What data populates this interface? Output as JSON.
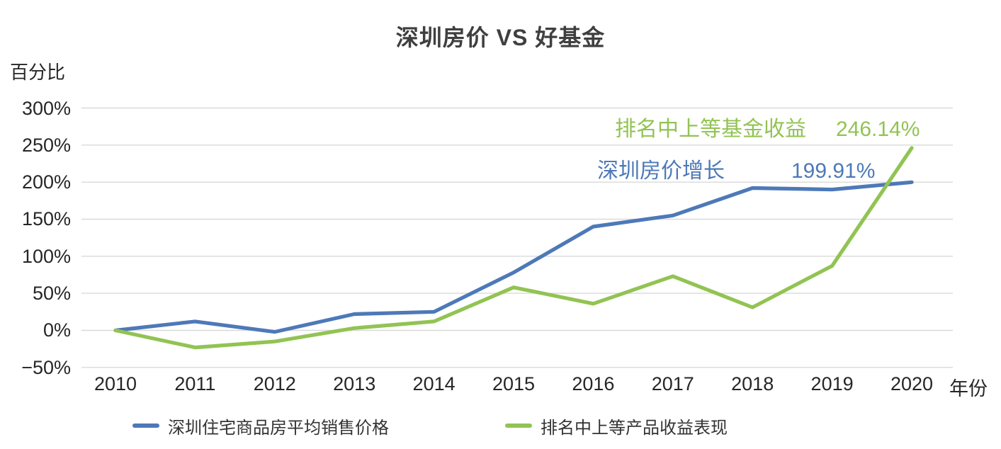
{
  "chart_data": {
    "type": "line",
    "title": "深圳房价 VS 好基金",
    "ylabel": "百分比",
    "xlabel": "年份",
    "ylim": [
      -50,
      300
    ],
    "ytick_step": 50,
    "yticks": [
      "300%",
      "250%",
      "200%",
      "150%",
      "100%",
      "50%",
      "0%",
      "−50%"
    ],
    "grid": true,
    "legend_position": "bottom",
    "categories": [
      "2010",
      "2011",
      "2012",
      "2013",
      "2014",
      "2015",
      "2016",
      "2017",
      "2018",
      "2019",
      "2020"
    ],
    "series": [
      {
        "name": "深圳住宅商品房平均销售价格",
        "color": "#4d79b8",
        "values": [
          0,
          12,
          -2,
          22,
          25,
          78,
          140,
          155,
          192,
          190,
          199.91
        ]
      },
      {
        "name": "排名中上等产品收益表现",
        "color": "#92c353",
        "values": [
          0,
          -23,
          -15,
          3,
          12,
          58,
          36,
          73,
          31,
          87,
          246.14
        ]
      }
    ]
  },
  "annotations": {
    "fund": {
      "label": "排名中上等基金收益",
      "value": "246.14%"
    },
    "house": {
      "label": "深圳房价增长",
      "value": "199.91%"
    }
  }
}
